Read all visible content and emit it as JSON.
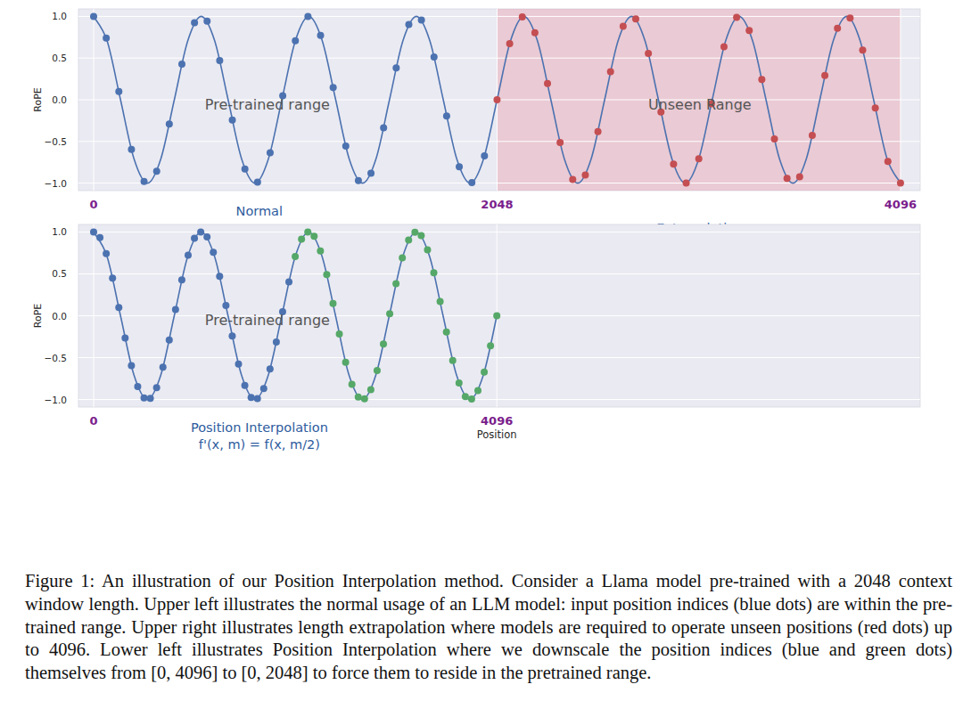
{
  "chart_data": [
    {
      "type": "line",
      "xlim": [
        -77,
        4196
      ],
      "ylim": [
        -1.09,
        1.09
      ],
      "xticks": [
        0,
        2048,
        4096
      ],
      "yticks": [
        {
          "value": -1,
          "label": "−1.0"
        },
        {
          "value": -0.5,
          "label": "−0.5"
        },
        {
          "value": 0,
          "label": "0.0"
        },
        {
          "value": 0.5,
          "label": "0.5"
        },
        {
          "value": 1,
          "label": "1.0"
        }
      ],
      "ylabel": "RoPE",
      "grid": true,
      "regions": [
        {
          "xlim": [
            2048,
            4096
          ],
          "color": "#e8788a"
        }
      ],
      "annotations": [
        {
          "text": "Pre-trained range",
          "x": 882,
          "y": -0.05
        },
        {
          "text": "Unseen Range",
          "x": 3077,
          "y": -0.05
        }
      ],
      "sublabels": [
        {
          "text": "Normal",
          "x": 841
        },
        {
          "text": "Extrapolation",
          "x": 3077
        }
      ],
      "series": [
        {
          "type": "line",
          "color": "#4c72b0",
          "x": [
            0,
            68.3,
            136.5,
            204.8,
            273.1,
            341.3,
            409.6,
            477.9,
            546.1,
            614.4,
            682.7,
            750.9,
            819.2,
            887.5,
            955.7,
            1024,
            1092.3,
            1160.5,
            1228.8,
            1297.1,
            1365.3,
            1433.6,
            1501.9,
            1570.1,
            1638.4,
            1706.7,
            1774.9,
            1843.2,
            1911.5,
            1979.7,
            2048,
            2116.3,
            2184.5,
            2252.8,
            2321.1,
            2389.3,
            2457.6,
            2525.9,
            2594.1,
            2662.4,
            2730.7,
            2798.9,
            2867.2,
            2935.5,
            3003.7,
            3072,
            3140.3,
            3208.5,
            3276.8,
            3345.1,
            3413.3,
            3481.6,
            3549.9,
            3618.1,
            3686.4,
            3754.7,
            3822.9,
            3891.2,
            3959.5,
            4027.7,
            4096
          ],
          "values": [
            1,
            0.707,
            0,
            -0.707,
            -1,
            -0.707,
            0,
            0.707,
            1,
            0.707,
            0,
            -0.707,
            -1,
            -0.707,
            0,
            0.707,
            1,
            0.707,
            0,
            -0.707,
            -1,
            -0.707,
            0,
            0.707,
            1,
            0.707,
            0,
            -0.707,
            -1,
            -0.707,
            0,
            0.707,
            1,
            0.707,
            0,
            -0.707,
            -1,
            -0.707,
            0,
            0.707,
            1,
            0.707,
            0,
            -0.707,
            -1,
            -0.707,
            0,
            0.707,
            1,
            0.707,
            0,
            -0.707,
            -1,
            -0.707,
            0,
            0.707,
            1,
            0.707,
            0,
            -0.707,
            -1
          ]
        },
        {
          "type": "scatter",
          "color": "#4c72b0",
          "x": [
            0,
            64,
            128,
            192,
            256,
            320,
            384,
            448,
            512,
            576,
            640,
            704,
            768,
            832,
            896,
            960,
            1024,
            1088,
            1152,
            1216,
            1280,
            1344,
            1408,
            1472,
            1536,
            1600,
            1664,
            1728,
            1792,
            1856,
            1920,
            1984
          ],
          "values": [
            1,
            0.741,
            0.098,
            -0.596,
            -0.981,
            -0.858,
            -0.29,
            0.428,
            0.924,
            0.942,
            0.471,
            -0.243,
            -0.831,
            -0.989,
            -0.636,
            0.049,
            0.707,
            0.999,
            0.773,
            0.147,
            -0.556,
            -0.97,
            -0.882,
            -0.337,
            0.383,
            0.904,
            0.957,
            0.514,
            -0.195,
            -0.803,
            -0.995,
            -0.672
          ]
        },
        {
          "type": "scatter",
          "color": "#c44e52",
          "x": [
            2048,
            2112,
            2176,
            2240,
            2304,
            2368,
            2432,
            2496,
            2560,
            2624,
            2688,
            2752,
            2816,
            2880,
            2944,
            3008,
            3072,
            3136,
            3200,
            3264,
            3328,
            3392,
            3456,
            3520,
            3584,
            3648,
            3712,
            3776,
            3840,
            3904,
            3968,
            4032,
            4096
          ],
          "values": [
            0,
            0.672,
            0.995,
            0.803,
            0.195,
            -0.514,
            -0.957,
            -0.904,
            -0.383,
            0.337,
            0.882,
            0.97,
            0.556,
            -0.147,
            -0.773,
            -0.999,
            -0.707,
            -0.049,
            0.636,
            0.989,
            0.831,
            0.243,
            -0.471,
            -0.942,
            -0.924,
            -0.428,
            0.29,
            0.858,
            0.981,
            0.596,
            -0.098,
            -0.741,
            -1
          ]
        }
      ]
    },
    {
      "type": "line",
      "xlim": [
        -154,
        8397
      ],
      "ylim": [
        -1.09,
        1.09
      ],
      "xticks": [
        0,
        4096
      ],
      "yticks": [
        {
          "value": -1,
          "label": "−1.0"
        },
        {
          "value": -0.5,
          "label": "−0.5"
        },
        {
          "value": 0,
          "label": "0.0"
        },
        {
          "value": 0.5,
          "label": "0.5"
        },
        {
          "value": 1,
          "label": "1.0"
        }
      ],
      "xlabel": "Position",
      "ylabel": "RoPE",
      "grid": true,
      "annotations": [
        {
          "text": "Pre-trained range",
          "x": 1765,
          "y": -0.05
        }
      ],
      "sublabels": [
        {
          "text": "Position Interpolation",
          "x": 1684
        },
        {
          "text": "f'(x, m) = f(x, m/2)",
          "x": 1684
        }
      ],
      "series": [
        {
          "type": "line",
          "color": "#4c72b0",
          "x": [
            0,
            136.5,
            273.1,
            409.6,
            546.1,
            682.7,
            819.2,
            955.7,
            1092.3,
            1228.8,
            1365.3,
            1501.9,
            1638.4,
            1774.9,
            1911.5,
            2048,
            2184.5,
            2321.1,
            2457.6,
            2594.1,
            2730.7,
            2867.2,
            3003.7,
            3140.3,
            3276.8,
            3413.3,
            3549.9,
            3686.4,
            3822.9,
            3959.5,
            4096
          ],
          "values": [
            1,
            0.707,
            0,
            -0.707,
            -1,
            -0.707,
            0,
            0.707,
            1,
            0.707,
            0,
            -0.707,
            -1,
            -0.707,
            0,
            0.707,
            1,
            0.707,
            0,
            -0.707,
            -1,
            -0.707,
            0,
            0.707,
            1,
            0.707,
            0,
            -0.707,
            -1,
            -0.707,
            0
          ]
        },
        {
          "type": "scatter",
          "color": "#4c72b0",
          "x": [
            0,
            64,
            128,
            192,
            256,
            320,
            384,
            448,
            512,
            576,
            640,
            704,
            768,
            832,
            896,
            960,
            1024,
            1088,
            1152,
            1216,
            1280,
            1344,
            1408,
            1472,
            1536,
            1600,
            1664,
            1728,
            1792,
            1856,
            1920,
            1984
          ],
          "values": [
            1,
            0.933,
            0.741,
            0.45,
            0.098,
            -0.267,
            -0.596,
            -0.845,
            -0.981,
            -0.985,
            -0.858,
            -0.615,
            -0.29,
            0.074,
            0.428,
            0.724,
            0.924,
            1,
            0.942,
            0.757,
            0.471,
            0.122,
            -0.243,
            -0.576,
            -0.831,
            -0.976,
            -0.989,
            -0.87,
            -0.636,
            -0.314,
            0.049,
            0.405
          ]
        },
        {
          "type": "scatter",
          "color": "#55a868",
          "x": [
            2048,
            2112,
            2176,
            2240,
            2304,
            2368,
            2432,
            2496,
            2560,
            2624,
            2688,
            2752,
            2816,
            2880,
            2944,
            3008,
            3072,
            3136,
            3200,
            3264,
            3328,
            3392,
            3456,
            3520,
            3584,
            3648,
            3712,
            3776,
            3840,
            3904,
            3968,
            4032,
            4096
          ],
          "values": [
            0.707,
            0.914,
            0.999,
            0.95,
            0.773,
            0.493,
            0.147,
            -0.219,
            -0.556,
            -0.818,
            -0.97,
            -0.992,
            -0.882,
            -0.653,
            -0.337,
            0.025,
            0.383,
            0.69,
            0.904,
            0.997,
            0.957,
            0.788,
            0.514,
            0.171,
            -0.195,
            -0.535,
            -0.803,
            -0.964,
            -0.995,
            -0.893,
            -0.672,
            -0.36,
            0
          ]
        }
      ]
    }
  ],
  "caption": "Figure 1: An illustration of our Position Interpolation method. Consider a Llama model pre-trained with a 2048 context window length. Upper left illustrates the normal usage of an LLM model: input position indices (blue dots) are within the pre-trained range. Upper right illustrates length extrapolation where models are required to operate unseen positions (red dots) up to 4096. Lower left illustrates Position Interpolation where we downscale the position indices (blue and green dots) themselves from [0, 4096] to [0, 2048] to force them to reside in the pretrained range."
}
